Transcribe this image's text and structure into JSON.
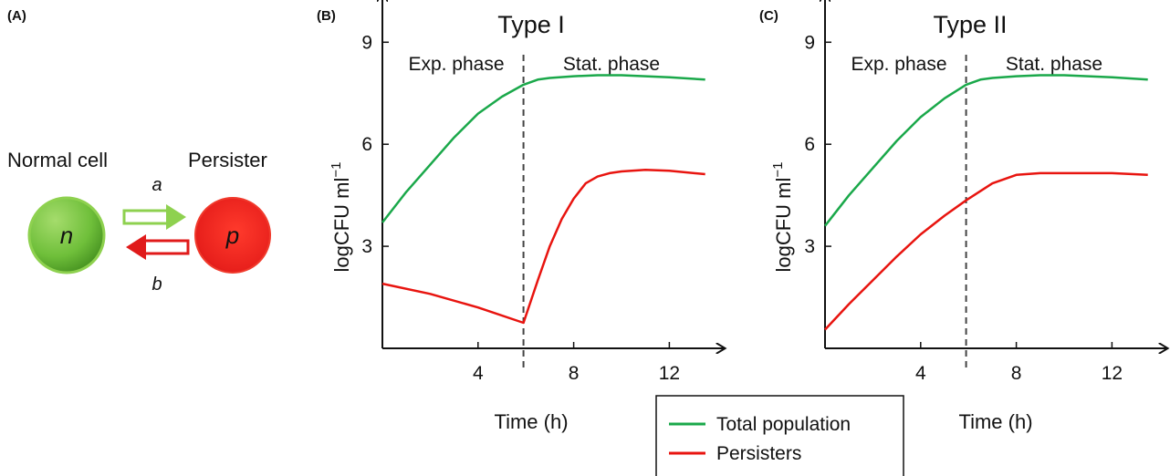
{
  "panelA": {
    "letter": "(A)",
    "normal_label": "Normal cell",
    "persister_label": "Persister",
    "normal_symbol": "n",
    "persister_symbol": "p",
    "rate_a": "a",
    "rate_b": "b",
    "colors": {
      "normal": "#6fbf3a",
      "persister": "#e8201c",
      "arrow_green": "#8ed14f",
      "arrow_red": "#e01a1a"
    }
  },
  "legend": {
    "items": [
      {
        "label": "Total population",
        "color": "#1aa84a"
      },
      {
        "label": "Persisters",
        "color": "#e8140f"
      }
    ]
  },
  "chart_data": [
    {
      "type": "line",
      "panel": "(B)",
      "title": "Type I",
      "xlabel": "Time (h)",
      "ylabel": "logCFU ml",
      "ylabel_superscript": "−1",
      "xticks": [
        4,
        8,
        12
      ],
      "yticks": [
        3,
        6,
        9
      ],
      "xlim": [
        0,
        13.8
      ],
      "ylim": [
        0,
        10.3
      ],
      "phase_boundary": 5.9,
      "phase_labels": [
        "Exp. phase",
        "Stat. phase"
      ],
      "series": [
        {
          "name": "Total population",
          "color": "#1aa84a",
          "x": [
            0,
            1,
            2,
            3,
            4,
            5,
            5.9,
            6.5,
            7,
            8,
            9,
            10,
            11,
            12,
            13.5
          ],
          "y": [
            3.7,
            4.6,
            5.4,
            6.2,
            6.9,
            7.4,
            7.75,
            7.9,
            7.95,
            8.0,
            8.03,
            8.03,
            8.0,
            7.97,
            7.9
          ]
        },
        {
          "name": "Persisters",
          "color": "#e8140f",
          "x": [
            0,
            2,
            4,
            5.9,
            6.5,
            7,
            7.5,
            8,
            8.5,
            9,
            9.5,
            10,
            11,
            12,
            13.5
          ],
          "y": [
            1.9,
            1.6,
            1.2,
            0.75,
            2.0,
            3.0,
            3.8,
            4.4,
            4.85,
            5.05,
            5.15,
            5.2,
            5.25,
            5.22,
            5.12
          ]
        }
      ]
    },
    {
      "type": "line",
      "panel": "(C)",
      "title": "Type II",
      "xlabel": "Time (h)",
      "ylabel": "logCFU ml",
      "ylabel_superscript": "−1",
      "xticks": [
        4,
        8,
        12
      ],
      "yticks": [
        3,
        6,
        9
      ],
      "xlim": [
        0,
        13.8
      ],
      "ylim": [
        0,
        10.3
      ],
      "phase_boundary": 5.9,
      "phase_labels": [
        "Exp. phase",
        "Stat. phase"
      ],
      "series": [
        {
          "name": "Total population",
          "color": "#1aa84a",
          "x": [
            0,
            1,
            2,
            3,
            4,
            5,
            5.9,
            6.5,
            7,
            8,
            9,
            10,
            11,
            12,
            13.5
          ],
          "y": [
            3.6,
            4.5,
            5.3,
            6.1,
            6.8,
            7.35,
            7.75,
            7.9,
            7.95,
            8.0,
            8.03,
            8.03,
            8.0,
            7.97,
            7.9
          ]
        },
        {
          "name": "Persisters",
          "color": "#e8140f",
          "x": [
            0,
            1,
            2,
            3,
            4,
            5,
            5.9,
            7,
            8,
            9,
            10,
            11,
            12,
            13.5
          ],
          "y": [
            0.55,
            1.3,
            2.0,
            2.7,
            3.35,
            3.9,
            4.35,
            4.85,
            5.1,
            5.15,
            5.15,
            5.15,
            5.15,
            5.1
          ]
        }
      ]
    }
  ]
}
